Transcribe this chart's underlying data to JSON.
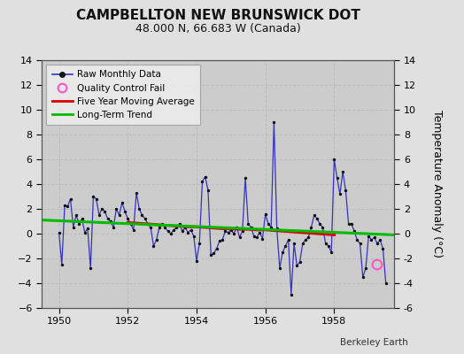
{
  "title": "CAMPBELLTON NEW BRUNSWICK DOT",
  "subtitle": "48.000 N, 66.683 W (Canada)",
  "ylabel": "Temperature Anomaly (°C)",
  "credit": "Berkeley Earth",
  "xlim": [
    1949.5,
    1959.75
  ],
  "ylim": [
    -6,
    14
  ],
  "yticks": [
    -6,
    -4,
    -2,
    0,
    2,
    4,
    6,
    8,
    10,
    12,
    14
  ],
  "xticks": [
    1950,
    1952,
    1954,
    1956,
    1958
  ],
  "bg_color": "#e0e0e0",
  "plot_bg_color": "#cccccc",
  "raw_color": "#3333bb",
  "raw_marker_color": "#111111",
  "ma_color": "#dd0000",
  "trend_color": "#00bb00",
  "qc_color": "#ff55cc",
  "raw_x": [
    1950.0,
    1950.083,
    1950.167,
    1950.25,
    1950.333,
    1950.417,
    1950.5,
    1950.583,
    1950.667,
    1950.75,
    1950.833,
    1950.917,
    1951.0,
    1951.083,
    1951.167,
    1951.25,
    1951.333,
    1951.417,
    1951.5,
    1951.583,
    1951.667,
    1951.75,
    1951.833,
    1951.917,
    1952.0,
    1952.083,
    1952.167,
    1952.25,
    1952.333,
    1952.417,
    1952.5,
    1952.583,
    1952.667,
    1952.75,
    1952.833,
    1952.917,
    1953.0,
    1953.083,
    1953.167,
    1953.25,
    1953.333,
    1953.417,
    1953.5,
    1953.583,
    1953.667,
    1953.75,
    1953.833,
    1953.917,
    1954.0,
    1954.083,
    1954.167,
    1954.25,
    1954.333,
    1954.417,
    1954.5,
    1954.583,
    1954.667,
    1954.75,
    1954.833,
    1954.917,
    1955.0,
    1955.083,
    1955.167,
    1955.25,
    1955.333,
    1955.417,
    1955.5,
    1955.583,
    1955.667,
    1955.75,
    1955.833,
    1955.917,
    1956.0,
    1956.083,
    1956.167,
    1956.25,
    1956.333,
    1956.417,
    1956.5,
    1956.583,
    1956.667,
    1956.75,
    1956.833,
    1956.917,
    1957.0,
    1957.083,
    1957.167,
    1957.25,
    1957.333,
    1957.417,
    1957.5,
    1957.583,
    1957.667,
    1957.75,
    1957.833,
    1957.917,
    1958.0,
    1958.083,
    1958.167,
    1958.25,
    1958.333,
    1958.417,
    1958.5,
    1958.583,
    1958.667,
    1958.75,
    1958.833,
    1958.917,
    1959.0,
    1959.083,
    1959.167,
    1959.25,
    1959.333,
    1959.417,
    1959.5
  ],
  "raw_y": [
    0.1,
    -2.5,
    2.3,
    2.2,
    2.8,
    0.5,
    1.5,
    0.8,
    1.2,
    0.1,
    0.4,
    -2.8,
    3.0,
    2.8,
    1.5,
    2.0,
    1.8,
    1.2,
    1.0,
    0.5,
    2.0,
    1.5,
    2.5,
    1.8,
    1.2,
    0.8,
    0.3,
    3.3,
    2.0,
    1.5,
    1.2,
    0.8,
    0.5,
    -1.0,
    -0.5,
    0.5,
    0.8,
    0.5,
    0.2,
    0.0,
    0.3,
    0.5,
    0.8,
    0.2,
    0.5,
    0.1,
    0.3,
    -0.2,
    -2.2,
    -0.8,
    4.2,
    4.6,
    3.5,
    -1.7,
    -1.6,
    -1.2,
    -0.6,
    -0.5,
    0.2,
    0.1,
    0.3,
    0.0,
    0.5,
    -0.3,
    0.2,
    4.5,
    0.8,
    0.5,
    -0.2,
    -0.3,
    0.1,
    -0.4,
    1.6,
    0.8,
    0.5,
    9.0,
    0.4,
    -2.8,
    -1.5,
    -1.0,
    -0.5,
    -4.9,
    -0.8,
    -2.6,
    -2.3,
    -0.8,
    -0.5,
    -0.3,
    0.5,
    1.5,
    1.2,
    0.8,
    0.5,
    -0.8,
    -1.0,
    -1.5,
    6.0,
    4.5,
    3.2,
    5.0,
    3.5,
    0.8,
    0.8,
    0.2,
    -0.5,
    -0.8,
    -3.5,
    -2.8,
    -0.2,
    -0.5,
    -0.3,
    -0.8,
    -0.5,
    -1.2,
    -4.0
  ],
  "ma_x": [
    1952.0,
    1952.25,
    1952.5,
    1952.75,
    1953.0,
    1953.25,
    1953.5,
    1953.75,
    1954.0,
    1954.25,
    1954.5,
    1954.75,
    1955.0,
    1955.25,
    1955.5,
    1955.75,
    1956.0,
    1956.25,
    1956.5,
    1956.75,
    1957.0,
    1957.25,
    1957.5,
    1957.75,
    1958.0
  ],
  "ma_y": [
    0.9,
    0.85,
    0.8,
    0.75,
    0.7,
    0.65,
    0.6,
    0.55,
    0.55,
    0.5,
    0.45,
    0.4,
    0.4,
    0.35,
    0.35,
    0.3,
    0.3,
    0.25,
    0.2,
    0.15,
    0.1,
    0.05,
    0.0,
    -0.05,
    -0.1
  ],
  "trend_x": [
    1949.5,
    1959.75
  ],
  "trend_y": [
    1.1,
    -0.1
  ],
  "qc_x": [
    1959.25
  ],
  "qc_y": [
    -2.5
  ],
  "grid_color": "#bbbbbb",
  "title_fontsize": 11,
  "subtitle_fontsize": 9,
  "tick_fontsize": 8,
  "legend_fontsize": 7.5,
  "credit_fontsize": 7.5
}
